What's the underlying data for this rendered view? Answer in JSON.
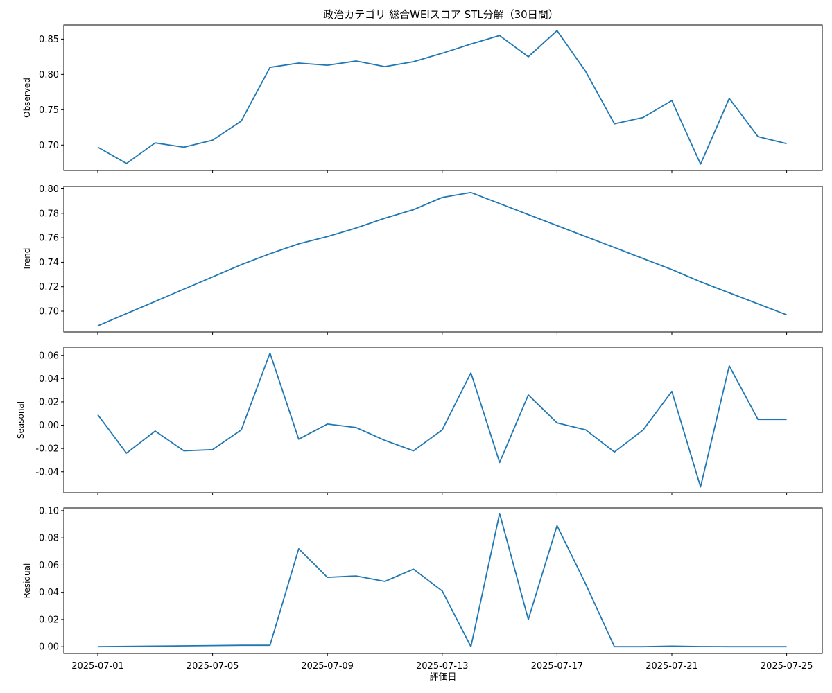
{
  "chart_data": {
    "type": "line",
    "title": "政治カテゴリ 総合WEIスコア STL分解（30日間）",
    "xlabel": "評価日",
    "x": [
      "2025-07-01",
      "2025-07-02",
      "2025-07-03",
      "2025-07-04",
      "2025-07-05",
      "2025-07-06",
      "2025-07-07",
      "2025-07-08",
      "2025-07-09",
      "2025-07-10",
      "2025-07-11",
      "2025-07-12",
      "2025-07-13",
      "2025-07-14",
      "2025-07-15",
      "2025-07-16",
      "2025-07-17",
      "2025-07-18",
      "2025-07-19",
      "2025-07-20",
      "2025-07-21",
      "2025-07-22",
      "2025-07-23",
      "2025-07-24",
      "2025-07-25"
    ],
    "xticks": [
      "2025-07-01",
      "2025-07-05",
      "2025-07-09",
      "2025-07-13",
      "2025-07-17",
      "2025-07-21",
      "2025-07-25"
    ],
    "line_color": "#1f77b4",
    "panels": [
      {
        "name": "Observed",
        "ylabel": "Observed",
        "ylim": [
          0.664,
          0.87
        ],
        "yticks": [
          "0.70",
          "0.75",
          "0.80",
          "0.85"
        ],
        "values": [
          0.697,
          0.674,
          0.703,
          0.697,
          0.707,
          0.734,
          0.81,
          0.816,
          0.813,
          0.819,
          0.811,
          0.818,
          0.83,
          0.843,
          0.855,
          0.825,
          0.862,
          0.804,
          0.73,
          0.739,
          0.763,
          0.673,
          0.766,
          0.712,
          0.702
        ]
      },
      {
        "name": "Trend",
        "ylabel": "Trend",
        "ylim": [
          0.683,
          0.802
        ],
        "yticks": [
          "0.70",
          "0.72",
          "0.74",
          "0.76",
          "0.78",
          "0.80"
        ],
        "values": [
          0.688,
          0.698,
          0.708,
          0.718,
          0.728,
          0.738,
          0.747,
          0.755,
          0.761,
          0.768,
          0.776,
          0.783,
          0.793,
          0.797,
          0.788,
          0.779,
          0.77,
          0.761,
          0.752,
          0.743,
          0.734,
          0.724,
          0.715,
          0.706,
          0.697
        ]
      },
      {
        "name": "Seasonal",
        "ylabel": "Seasonal",
        "ylim": [
          -0.058,
          0.067
        ],
        "yticks": [
          "0.06",
          "0.04",
          "0.02",
          "0.00",
          "-0.02",
          "-0.04"
        ],
        "values": [
          0.009,
          -0.024,
          -0.005,
          -0.022,
          -0.021,
          -0.004,
          0.062,
          -0.012,
          0.001,
          -0.002,
          -0.013,
          -0.022,
          -0.004,
          0.045,
          -0.032,
          0.026,
          0.002,
          -0.004,
          -0.023,
          -0.004,
          0.029,
          -0.053,
          0.051,
          0.005,
          0.005
        ]
      },
      {
        "name": "Residual",
        "ylabel": "Residual",
        "ylim": [
          -0.005,
          0.102
        ],
        "yticks": [
          "0.00",
          "0.02",
          "0.04",
          "0.06",
          "0.08",
          "0.10"
        ],
        "values": [
          0.0,
          0.0002,
          0.0004,
          0.0006,
          0.0008,
          0.001,
          0.001,
          0.072,
          0.051,
          0.052,
          0.048,
          0.057,
          0.041,
          0.0,
          0.098,
          0.02,
          0.089,
          0.046,
          0.0,
          0.0,
          0.0004,
          0.0001,
          0.0,
          0.0,
          0.0
        ]
      }
    ]
  }
}
